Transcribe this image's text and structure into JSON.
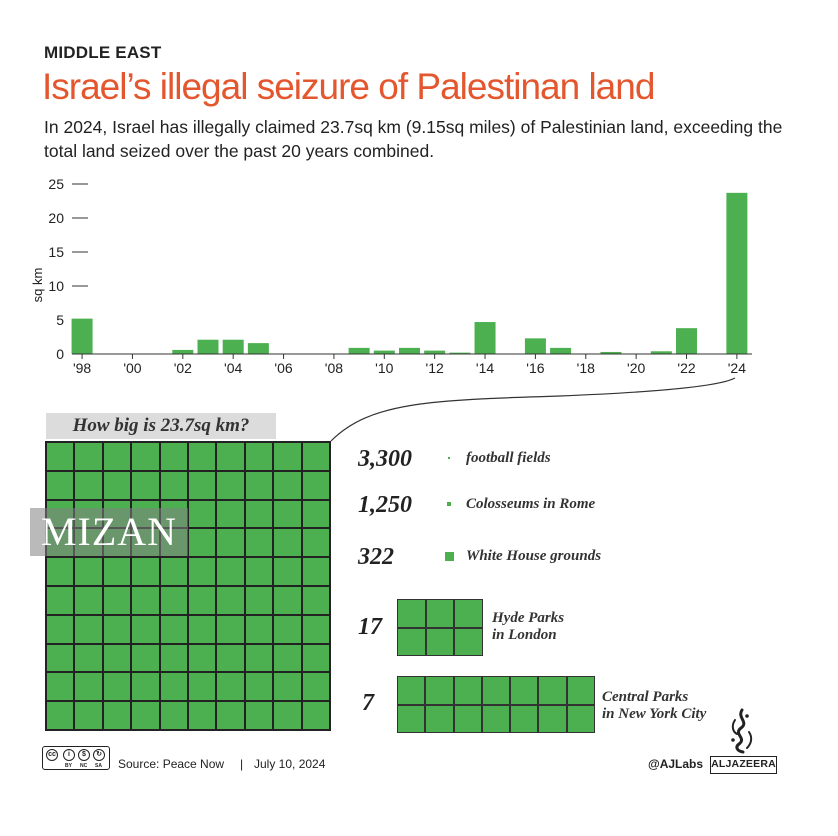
{
  "header": {
    "kicker": "MIDDLE EAST",
    "title": "Israel’s illegal seizure of Palestinan land",
    "subtitle": "In 2024, Israel has illegally claimed 23.7sq km (9.15sq miles) of Palestinian land, exceeding the total land seized over the past 20 years combined."
  },
  "chart_data": {
    "type": "bar",
    "title": "",
    "xlabel": "",
    "ylabel": "sq km",
    "ylim": [
      0,
      25
    ],
    "yticks": [
      0,
      5,
      10,
      15,
      20,
      25
    ],
    "years": [
      1998,
      1999,
      2000,
      2001,
      2002,
      2003,
      2004,
      2005,
      2006,
      2007,
      2008,
      2009,
      2010,
      2011,
      2012,
      2013,
      2014,
      2015,
      2016,
      2017,
      2018,
      2019,
      2020,
      2021,
      2022,
      2023,
      2024
    ],
    "values": [
      5.2,
      0,
      0,
      0,
      0.6,
      2.1,
      2.1,
      1.6,
      0,
      0,
      0,
      0.9,
      0.5,
      0.9,
      0.5,
      0.2,
      4.7,
      0,
      2.3,
      0.9,
      0,
      0.3,
      0,
      0.4,
      3.8,
      0,
      23.7
    ],
    "tick_years": [
      1998,
      2000,
      2002,
      2004,
      2006,
      2008,
      2010,
      2012,
      2014,
      2016,
      2018,
      2020,
      2022,
      2024
    ],
    "tick_labels": [
      "'98",
      "'00",
      "'02",
      "'04",
      "'06",
      "'08",
      "'10",
      "'12",
      "'14",
      "'16",
      "'18",
      "'20",
      "'22",
      "'24"
    ],
    "color": "#4caf50"
  },
  "comparison": {
    "label": "How big is 23.7sq km?",
    "grid_rows": 10,
    "grid_cols": 10,
    "items": [
      {
        "number": "3,300",
        "label": "football fields"
      },
      {
        "number": "1,250",
        "label": "Colosseums in Rome"
      },
      {
        "number": "322",
        "label": "White House grounds"
      },
      {
        "number": "17",
        "label_line1": "Hyde Parks",
        "label_line2": "in London"
      },
      {
        "number": "7",
        "label_line1": "Central Parks",
        "label_line2": "in New York City"
      }
    ]
  },
  "watermark": "MIZAN",
  "footer": {
    "cc_labels": [
      "BY",
      "NC",
      "SA"
    ],
    "source": "Source: Peace Now",
    "separator": "|",
    "date": "July 10, 2024",
    "handle": "@AJLabs",
    "brand": "ALJAZEERA"
  },
  "colors": {
    "accent": "#e4572e",
    "bar": "#4caf50",
    "text": "#222222"
  }
}
